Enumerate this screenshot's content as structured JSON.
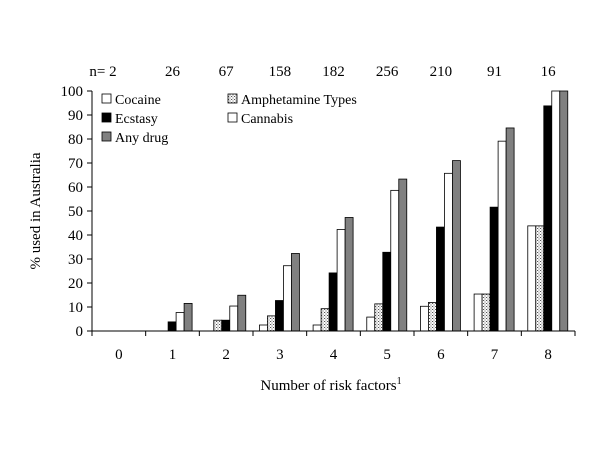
{
  "chart_data": {
    "type": "bar",
    "title": "",
    "n_label": "n= 2",
    "n_values": [
      "2",
      "26",
      "67",
      "158",
      "182",
      "256",
      "210",
      "91",
      "16"
    ],
    "categories": [
      "0",
      "1",
      "2",
      "3",
      "4",
      "5",
      "6",
      "7",
      "8"
    ],
    "xlabel": "Number of risk factors",
    "xlabel_sup": "1",
    "ylabel": "% used in Australia",
    "ylim": [
      0,
      100
    ],
    "yticks": [
      0,
      10,
      20,
      30,
      40,
      50,
      60,
      70,
      80,
      90,
      100
    ],
    "grid": false,
    "legend_position": "top-left",
    "series": [
      {
        "name": "Cocaine",
        "fill": "white",
        "values": [
          0,
          0,
          0,
          2.5,
          2.5,
          5.8,
          10.3,
          15.4,
          43.8
        ]
      },
      {
        "name": "Amphetamine Types",
        "fill": "hatch",
        "values": [
          0,
          0,
          4.5,
          6.3,
          9.3,
          11.3,
          11.9,
          15.4,
          43.8
        ]
      },
      {
        "name": "Ecstasy",
        "fill": "#000000",
        "values": [
          0,
          3.8,
          4.5,
          12.7,
          24.2,
          32.8,
          43.3,
          51.6,
          93.8
        ]
      },
      {
        "name": "Cannabis",
        "fill": "white",
        "values": [
          0,
          7.7,
          10.4,
          27.2,
          42.3,
          58.6,
          65.7,
          79.1,
          100
        ]
      },
      {
        "name": "Any drug",
        "fill": "#808080",
        "values": [
          0,
          11.5,
          14.9,
          32.3,
          47.3,
          63.3,
          71.0,
          84.6,
          100
        ]
      }
    ]
  }
}
